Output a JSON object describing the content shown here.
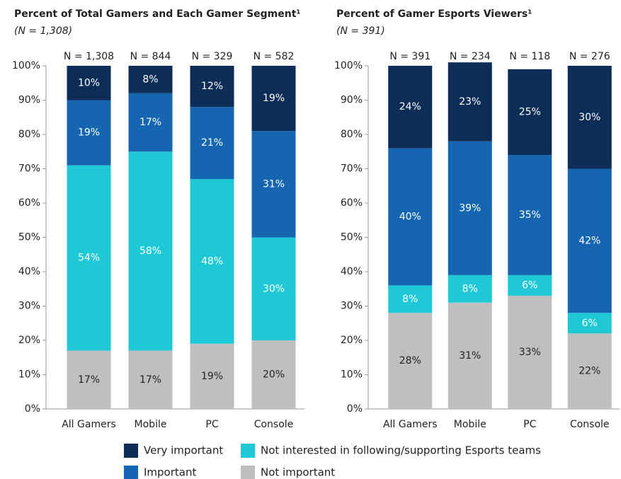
{
  "chart_data": [
    {
      "type": "bar",
      "stacked": true,
      "title": "Percent of Total Gamers and Each Gamer Segment¹",
      "subtitle": "(N = 1,308)",
      "n_labels": [
        "N = 1,308",
        "N = 844",
        "N = 329",
        "N = 582"
      ],
      "categories": [
        "All Gamers",
        "Mobile",
        "PC",
        "Console"
      ],
      "series": [
        {
          "name": "Not important",
          "color": "#bfbfbf",
          "values": [
            17,
            17,
            19,
            20
          ],
          "value_labels": [
            "17%",
            "17%",
            "19%",
            "20%"
          ]
        },
        {
          "name": "Not interested in following/supporting Esports teams",
          "color": "#1ec8d4",
          "values": [
            54,
            58,
            48,
            30
          ],
          "value_labels": [
            "54%",
            "58%",
            "48%",
            "30%"
          ]
        },
        {
          "name": "Important",
          "color": "#1565b0",
          "values": [
            19,
            17,
            21,
            31
          ],
          "value_labels": [
            "19%",
            "17%",
            "21%",
            "31%"
          ]
        },
        {
          "name": "Very important",
          "color": "#0d2d56",
          "values": [
            10,
            8,
            12,
            19
          ],
          "value_labels": [
            "10%",
            "8%",
            "12%",
            "19%"
          ]
        }
      ],
      "ylim": [
        0,
        100
      ],
      "yticks": [
        {
          "value": 0,
          "label": "0%"
        },
        {
          "value": 10,
          "label": "10%"
        },
        {
          "value": 20,
          "label": "20%"
        },
        {
          "value": 30,
          "label": "30%"
        },
        {
          "value": 40,
          "label": "40%"
        },
        {
          "value": 50,
          "label": "50%"
        },
        {
          "value": 60,
          "label": "60%"
        },
        {
          "value": 70,
          "label": "70%"
        },
        {
          "value": 80,
          "label": "80%"
        },
        {
          "value": 90,
          "label": "90%"
        },
        {
          "value": 100,
          "label": "100%"
        }
      ]
    },
    {
      "type": "bar",
      "stacked": true,
      "title": "Percent of Gamer Esports Viewers¹",
      "subtitle": "(N = 391)",
      "n_labels": [
        "N = 391",
        "N = 234",
        "N = 118",
        "N = 276"
      ],
      "categories": [
        "All Gamers",
        "Mobile",
        "PC",
        "Console"
      ],
      "series": [
        {
          "name": "Not important",
          "color": "#bfbfbf",
          "values": [
            28,
            31,
            33,
            22
          ],
          "value_labels": [
            "28%",
            "31%",
            "33%",
            "22%"
          ]
        },
        {
          "name": "Not interested in following/supporting Esports teams",
          "color": "#1ec8d4",
          "values": [
            8,
            8,
            6,
            6
          ],
          "value_labels": [
            "8%",
            "8%",
            "6%",
            "6%"
          ]
        },
        {
          "name": "Important",
          "color": "#1565b0",
          "values": [
            40,
            39,
            35,
            42
          ],
          "value_labels": [
            "40%",
            "39%",
            "35%",
            "42%"
          ]
        },
        {
          "name": "Very important",
          "color": "#0d2d56",
          "values": [
            24,
            23,
            25,
            30
          ],
          "value_labels": [
            "24%",
            "23%",
            "25%",
            "30%"
          ]
        }
      ],
      "ylim": [
        0,
        100
      ],
      "yticks": [
        {
          "value": 0,
          "label": "0%"
        },
        {
          "value": 10,
          "label": "10%"
        },
        {
          "value": 20,
          "label": "20%"
        },
        {
          "value": 30,
          "label": "30%"
        },
        {
          "value": 40,
          "label": "40%"
        },
        {
          "value": 50,
          "label": "50%"
        },
        {
          "value": 60,
          "label": "60%"
        },
        {
          "value": 70,
          "label": "70%"
        },
        {
          "value": 80,
          "label": "80%"
        },
        {
          "value": 90,
          "label": "90%"
        },
        {
          "value": 100,
          "label": "100%"
        }
      ]
    }
  ]
}
